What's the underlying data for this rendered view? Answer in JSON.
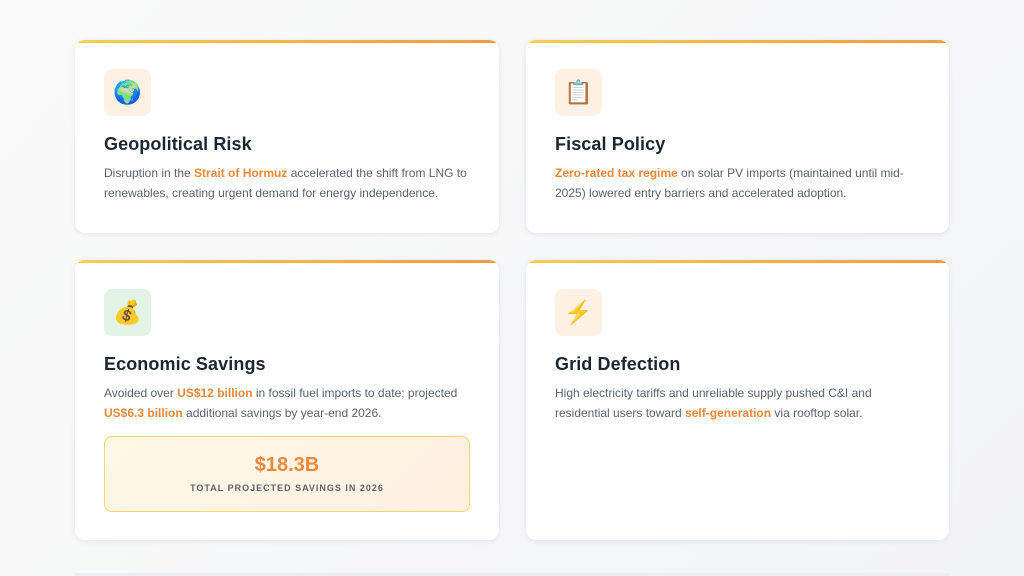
{
  "cards": [
    {
      "icon": "🌍",
      "icon_name": "globe-icon",
      "title": "Geopolitical Risk",
      "text_before": "Disruption in the ",
      "highlight": "Strait of Hormuz",
      "text_after": " accelerated the shift from LNG to renewables, creating urgent demand for energy independence."
    },
    {
      "icon": "📋",
      "icon_name": "clipboard-icon",
      "title": "Fiscal Policy",
      "text_before": "",
      "highlight": "Zero-rated tax regime",
      "text_after": " on solar PV imports (maintained until mid-2025) lowered entry barriers and accelerated adoption."
    },
    {
      "icon": "💰",
      "icon_name": "money-bag-icon",
      "title": "Economic Savings",
      "text_before": "Avoided over ",
      "highlight": "US$12 billion",
      "text_middle": " in fossil fuel imports to date; projected ",
      "highlight2": "US$6.3 billion",
      "text_after": " additional savings by year-end 2026.",
      "stat_value": "$18.3B",
      "stat_label": "TOTAL PROJECTED SAVINGS IN 2026"
    },
    {
      "icon": "⚡",
      "icon_name": "lightning-icon",
      "title": "Grid Defection",
      "text_before": "High electricity tariffs and unreliable supply pushed C&I and residential users toward ",
      "highlight": "self-generation",
      "text_after": " via rooftop solar."
    }
  ],
  "colors": {
    "accent": "#f0883a",
    "gradient_start": "#f7cf52",
    "gradient_end": "#f39a45",
    "title": "#1c2633"
  }
}
